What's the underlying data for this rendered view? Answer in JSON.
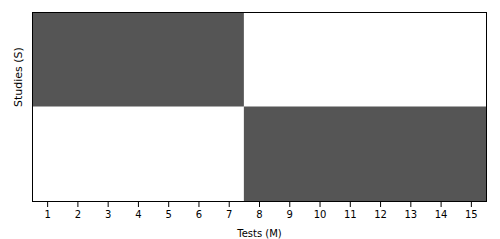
{
  "chart_data": {
    "type": "rect",
    "xlabel": "Tests (M)",
    "ylabel": "Studies (S)",
    "xlim": [
      0.5,
      15.5
    ],
    "ylim": [
      0,
      1
    ],
    "xticks": [
      1,
      2,
      3,
      4,
      5,
      6,
      7,
      8,
      9,
      10,
      11,
      12,
      13,
      14,
      15
    ],
    "tick_labels": "x",
    "color": "#555555",
    "rects": [
      {
        "x1": 0.5,
        "x2": 7.5,
        "y1": 0.5,
        "y2": 1
      },
      {
        "x1": 7.5,
        "x2": 15.5,
        "y1": 0,
        "y2": 0.5
      }
    ]
  }
}
